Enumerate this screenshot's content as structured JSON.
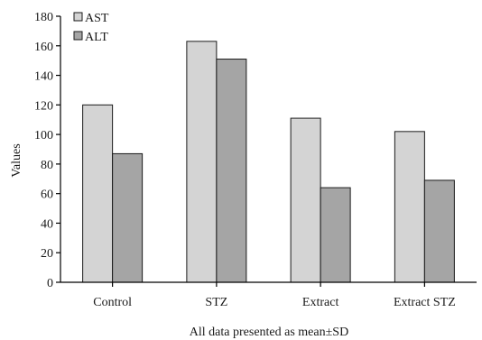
{
  "chart_data": {
    "type": "bar",
    "title": "",
    "xlabel": "All data presented as mean±SD",
    "ylabel": "Values",
    "ylim": [
      0,
      180
    ],
    "yticks": [
      0,
      20,
      40,
      60,
      80,
      100,
      120,
      140,
      160,
      180
    ],
    "categories": [
      "Control",
      "STZ",
      "Extract",
      "Extract STZ"
    ],
    "series": [
      {
        "name": "AST",
        "values": [
          120,
          163,
          111,
          102
        ],
        "color": "#d4d4d4"
      },
      {
        "name": "ALT",
        "values": [
          87,
          151,
          64,
          69
        ],
        "color": "#a5a5a5"
      }
    ],
    "legend_position": "top-left",
    "grid": false
  }
}
